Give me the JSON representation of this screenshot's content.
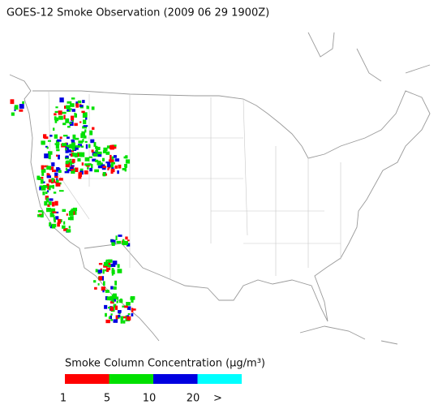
{
  "title": "GOES-12 Smoke Observation (2009 06 29  1900Z)",
  "legend": {
    "title": "Smoke Column Concentration (μg/m³)",
    "bins": [
      {
        "color": "#ff0000"
      },
      {
        "color": "#00e000"
      },
      {
        "color": "#0000e0"
      },
      {
        "color": "#00ffff"
      }
    ],
    "labels": [
      "1",
      "5",
      "10",
      "20",
      ">"
    ]
  }
}
